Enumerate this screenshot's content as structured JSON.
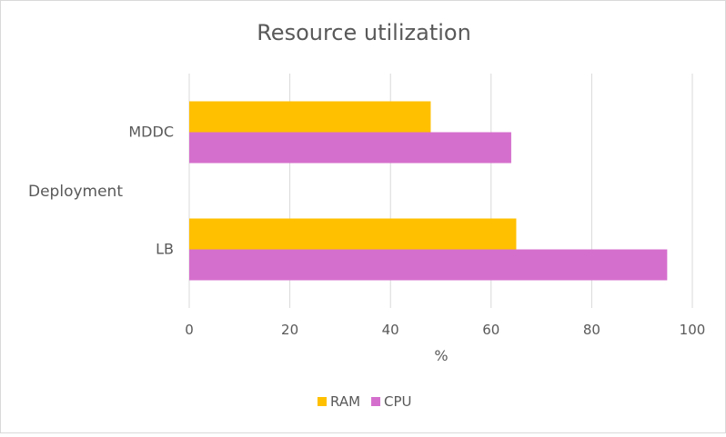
{
  "chart_data": {
    "type": "bar",
    "orientation": "horizontal",
    "title": "Resource utilization",
    "xlabel": "%",
    "ylabel": "Deployment",
    "categories": [
      "MDDC",
      "LB"
    ],
    "series": [
      {
        "name": "RAM",
        "values": [
          48,
          65
        ],
        "color": "#ffc000"
      },
      {
        "name": "CPU",
        "values": [
          64,
          95
        ],
        "color": "#d56fcd"
      }
    ],
    "xlim": [
      0,
      100
    ],
    "xticks": [
      0,
      20,
      40,
      60,
      80,
      100
    ],
    "grid": "vertical",
    "legend": "bottom",
    "colors": {
      "grid": "#d9d9d9",
      "text": "#595959",
      "title": "#595959"
    }
  }
}
